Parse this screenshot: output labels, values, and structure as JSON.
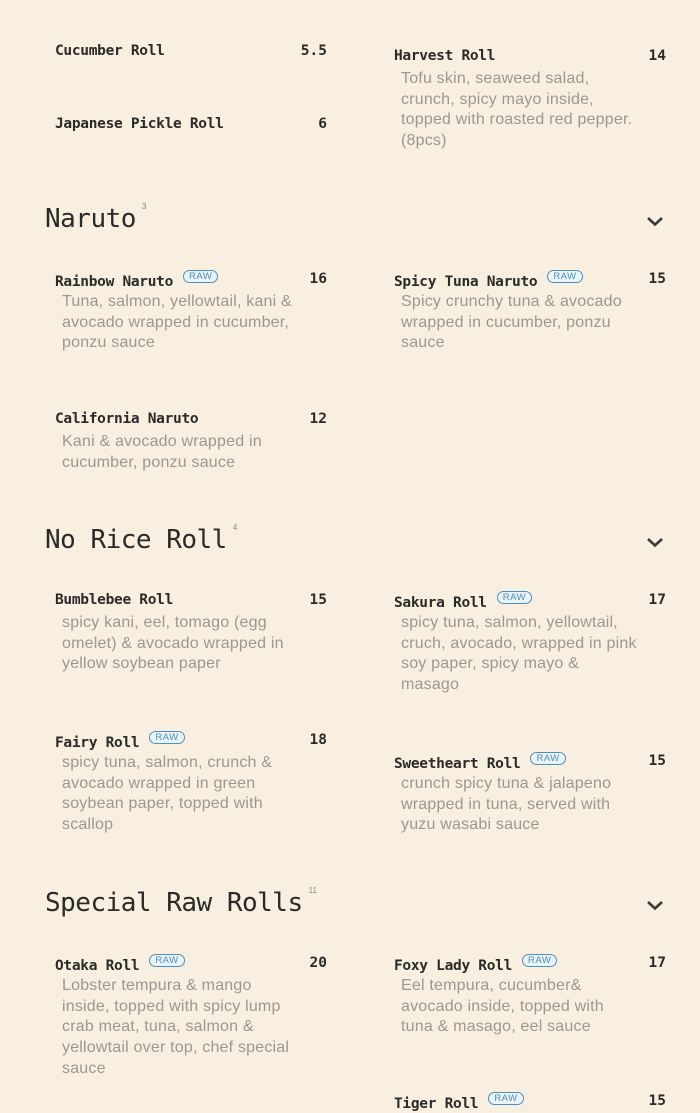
{
  "sections": [
    {
      "title": "Naruto",
      "count": "3"
    },
    {
      "title": "No Rice Roll",
      "count": "4"
    },
    {
      "title": "Special Raw Rolls",
      "count": "11"
    }
  ],
  "raw_badge": "RAW",
  "colors": {
    "background": "#f8efe0",
    "raw_badge": "#4d8fc0",
    "text": "#2a2a28",
    "description": "#9b9791"
  },
  "items": [
    {
      "name": "Cucumber Roll",
      "price": "5.5",
      "desc": "",
      "raw": false
    },
    {
      "name": "Harvest Roll",
      "price": "14",
      "desc": "Tofu skin, seaweed salad, crunch, spicy mayo inside, topped with roasted red pepper.(8pcs)",
      "raw": false
    },
    {
      "name": "Japanese Pickle Roll",
      "price": "6",
      "desc": "",
      "raw": false
    },
    {
      "name": "Rainbow Naruto",
      "price": "16",
      "desc": "Tuna, salmon, yellowtail, kani & avocado wrapped in cucumber, ponzu sauce",
      "raw": true
    },
    {
      "name": "Spicy Tuna Naruto",
      "price": "15",
      "desc": "Spicy crunchy tuna & avocado wrapped in cucumber, ponzu sauce",
      "raw": true
    },
    {
      "name": "California Naruto",
      "price": "12",
      "desc": "Kani & avocado wrapped in cucumber, ponzu sauce",
      "raw": false
    },
    {
      "name": "Bumblebee Roll",
      "price": "15",
      "desc": "spicy kani, eel, tomago (egg omelet) & avocado wrapped in yellow soybean paper",
      "raw": false
    },
    {
      "name": "Sakura Roll",
      "price": "17",
      "desc": " spicy tuna, salmon, yellowtail, cruch, avocado, wrapped in pink soy paper, spicy mayo & masago",
      "raw": true
    },
    {
      "name": "Fairy Roll",
      "price": "18",
      "desc": "spicy tuna, salmon, crunch & avocado wrapped in green soybean paper, topped with scallop",
      "raw": true
    },
    {
      "name": "Sweetheart Roll",
      "price": "15",
      "desc": "crunch spicy tuna & jalapeno wrapped in tuna, served with yuzu wasabi sauce",
      "raw": true
    },
    {
      "name": "Otaka Roll",
      "price": "20",
      "desc": "Lobster tempura & mango inside, topped with spicy lump crab meat, tuna, salmon & yellowtail over top, chef special sauce",
      "raw": true
    },
    {
      "name": "Foxy Lady Roll",
      "price": "17",
      "desc": "Eel tempura, cucumber& avocado inside, topped with tuna & masago, eel sauce",
      "raw": true
    },
    {
      "name": "Tiger Roll",
      "price": "15",
      "desc": "",
      "raw": true
    }
  ]
}
